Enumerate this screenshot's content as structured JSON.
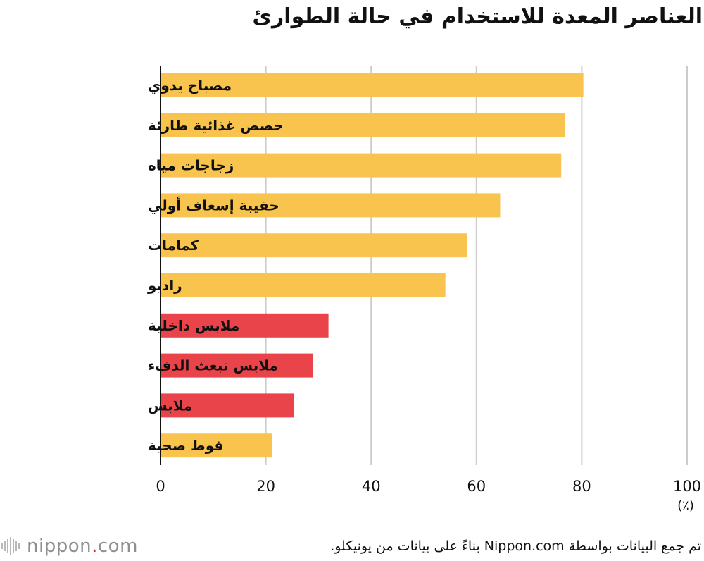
{
  "chart_data": {
    "type": "bar",
    "orientation": "horizontal",
    "title": "العناصر المعدة للاستخدام في حالة الطوارئ",
    "categories": [
      "مصباح يدوي",
      "حصص غذائية طارئة",
      "زجاجات مياه",
      "حقيبة إسعاف أولي",
      "كمامات",
      "راديو",
      "ملابس داخلية",
      "ملابس تبعث الدفء",
      "ملابس",
      "فوط صحية"
    ],
    "values": [
      80.3,
      76.8,
      76.1,
      64.5,
      58.2,
      54.1,
      31.9,
      28.9,
      25.4,
      21.2
    ],
    "bar_colors": [
      "#f8c44d",
      "#f8c44d",
      "#f8c44d",
      "#f8c44d",
      "#f8c44d",
      "#f8c44d",
      "#e8444a",
      "#e8444a",
      "#e8444a",
      "#f8c44d"
    ],
    "xlim": [
      0,
      100
    ],
    "xticks": [
      0,
      20,
      40,
      60,
      80,
      100
    ],
    "xlabel": "(٪)",
    "grid": true
  },
  "footer": {
    "logo_name": "nippon",
    "logo_dot": ".",
    "logo_tld": "com",
    "source": "تم جمع البيانات بواسطة Nippon.com بناءً على بيانات من يونيكلو."
  },
  "colors": {
    "primary_bar": "#f8c44d",
    "highlight_bar": "#e8444a",
    "grid": "#cccccc",
    "axis": "#111111"
  }
}
